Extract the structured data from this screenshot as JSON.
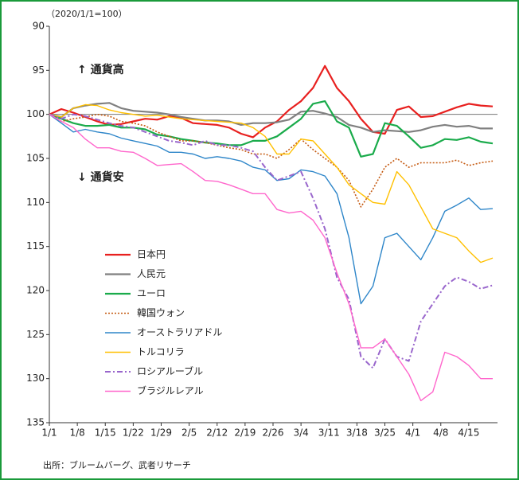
{
  "chart_data": {
    "type": "line",
    "subtitle": "（2020/1/1=100）",
    "annotations": [
      "↑ 通貨高",
      "↓ 通貨安"
    ],
    "source": "出所：ブルームバーグ、武者リサーチ",
    "x": [
      0,
      3,
      6,
      9,
      12,
      15,
      18,
      21,
      24,
      27,
      30,
      33,
      36,
      39,
      42,
      45,
      48,
      51,
      54,
      57,
      60,
      63,
      66,
      69,
      72,
      75,
      78,
      81,
      84,
      87,
      90,
      93,
      96,
      99,
      102,
      105,
      108,
      111
    ],
    "xlim": [
      0,
      111
    ],
    "xticks": [
      {
        "value": 0,
        "label": "1/1"
      },
      {
        "value": 7,
        "label": "1/8"
      },
      {
        "value": 14,
        "label": "1/15"
      },
      {
        "value": 21,
        "label": "1/22"
      },
      {
        "value": 28,
        "label": "1/29"
      },
      {
        "value": 35,
        "label": "2/5"
      },
      {
        "value": 42,
        "label": "2/12"
      },
      {
        "value": 49,
        "label": "2/19"
      },
      {
        "value": 56,
        "label": "2/26"
      },
      {
        "value": 63,
        "label": "3/4"
      },
      {
        "value": 70,
        "label": "3/11"
      },
      {
        "value": 77,
        "label": "3/18"
      },
      {
        "value": 84,
        "label": "3/25"
      },
      {
        "value": 91,
        "label": "4/1"
      },
      {
        "value": 98,
        "label": "4/8"
      },
      {
        "value": 105,
        "label": "4/15"
      }
    ],
    "ylim": [
      90,
      135
    ],
    "y_inverted": true,
    "yticks": [
      90,
      95,
      100,
      105,
      110,
      115,
      120,
      125,
      130,
      135
    ],
    "reference_line": 100,
    "series": [
      {
        "name": "日本円",
        "color": "#e8201f",
        "dash": "solid",
        "width": 2.2,
        "values": [
          100,
          99.4,
          99.8,
          100.3,
          100.8,
          101.2,
          101.1,
          100.8,
          100.5,
          100.6,
          100.2,
          100.4,
          101,
          101.1,
          101.2,
          101.5,
          102.2,
          102.6,
          101.5,
          100.8,
          99.5,
          98.5,
          97,
          94.5,
          97,
          98.5,
          100.5,
          102,
          102.2,
          99.5,
          99.1,
          100.3,
          100.2,
          99.7,
          99.2,
          98.8,
          99,
          99.1
        ]
      },
      {
        "name": "人民元",
        "color": "#808080",
        "dash": "solid",
        "width": 2.2,
        "values": [
          100,
          100.3,
          99.3,
          99,
          98.8,
          98.7,
          99.3,
          99.6,
          99.7,
          99.8,
          100,
          100.3,
          100.5,
          100.7,
          100.7,
          100.8,
          101.2,
          101,
          101,
          100.9,
          100.6,
          99.7,
          99.6,
          99.9,
          100.3,
          101.2,
          101.5,
          102,
          101.8,
          101.9,
          102,
          101.8,
          101.4,
          101.2,
          101.4,
          101.3,
          101.6,
          101.6
        ]
      },
      {
        "name": "ユーロ",
        "color": "#1aab4b",
        "dash": "solid",
        "width": 2.2,
        "values": [
          100,
          100.5,
          101,
          101.3,
          101.3,
          101.2,
          101.5,
          101.5,
          101.7,
          102.3,
          102.5,
          102.8,
          103,
          103.2,
          103.3,
          103.5,
          103.5,
          103,
          103,
          102.5,
          101.5,
          100.5,
          98.8,
          98.5,
          100.8,
          101.5,
          104.8,
          104.5,
          101,
          101.3,
          102.5,
          103.8,
          103.5,
          102.8,
          102.9,
          102.6,
          103.1,
          103.3
        ]
      },
      {
        "name": "韓国ウォン",
        "color": "#c55a11",
        "dash": "dot",
        "width": 1.6,
        "values": [
          100,
          100.8,
          100.5,
          100.3,
          100,
          100.2,
          100.8,
          101,
          101.3,
          102,
          102.5,
          103,
          103,
          103.2,
          103.5,
          103.8,
          104,
          104.5,
          104.5,
          105,
          104,
          102.8,
          104,
          105,
          106,
          107.5,
          110.5,
          108.5,
          106,
          105,
          106,
          105.5,
          105.5,
          105.5,
          105.2,
          105.8,
          105.5,
          105.3
        ]
      },
      {
        "name": "オーストラリアドル",
        "color": "#2e86c9",
        "dash": "solid",
        "width": 1.4,
        "values": [
          100,
          101,
          102,
          101.7,
          102,
          102.2,
          102.7,
          103,
          103.3,
          103.6,
          104.3,
          104.3,
          104.5,
          105,
          104.8,
          105,
          105.3,
          106,
          106.3,
          107.5,
          107.3,
          106.3,
          106.5,
          107,
          109,
          114,
          121.5,
          119.5,
          114,
          113.5,
          115,
          116.5,
          114,
          111,
          110.3,
          109.5,
          110.8,
          110.7
        ]
      },
      {
        "name": "トルコリラ",
        "color": "#ffc000",
        "dash": "solid",
        "width": 1.4,
        "values": [
          100,
          100.3,
          99.3,
          98.9,
          99,
          99.5,
          99.8,
          100,
          100.2,
          100.1,
          100.3,
          100.5,
          100.6,
          100.7,
          100.8,
          100.9,
          101,
          101.5,
          102.5,
          104.5,
          104.5,
          102.8,
          103,
          104.5,
          106,
          108,
          109,
          110,
          110.2,
          106.5,
          108,
          110.5,
          113,
          113.5,
          114,
          115.5,
          116.8,
          116.3
        ]
      },
      {
        "name": "ロシアルーブル",
        "color": "#9966cc",
        "dash": "dashdot",
        "width": 2,
        "values": [
          100,
          100.5,
          100,
          100.2,
          100.6,
          101,
          101.3,
          101.5,
          102,
          102.5,
          103,
          103.2,
          103.5,
          103,
          103.5,
          103.5,
          103.8,
          104.2,
          106,
          107.5,
          107,
          106.5,
          109.5,
          113,
          118.5,
          121,
          127.5,
          128.8,
          125.5,
          127.5,
          128,
          123.5,
          121.5,
          119.5,
          118.5,
          119,
          119.8,
          119.4
        ]
      },
      {
        "name": "ブラジルレアル",
        "color": "#ff66cc",
        "dash": "solid",
        "width": 1.4,
        "values": [
          100,
          100.8,
          101.5,
          102.8,
          103.8,
          103.8,
          104.2,
          104.3,
          105,
          105.8,
          105.7,
          105.6,
          106.5,
          107.5,
          107.6,
          108,
          108.5,
          109,
          109,
          110.8,
          111.2,
          111,
          112,
          114,
          118,
          121.5,
          126.5,
          126.5,
          125.5,
          127.5,
          129.5,
          132.5,
          131.5,
          127,
          127.5,
          128.5,
          130,
          130
        ]
      }
    ]
  }
}
